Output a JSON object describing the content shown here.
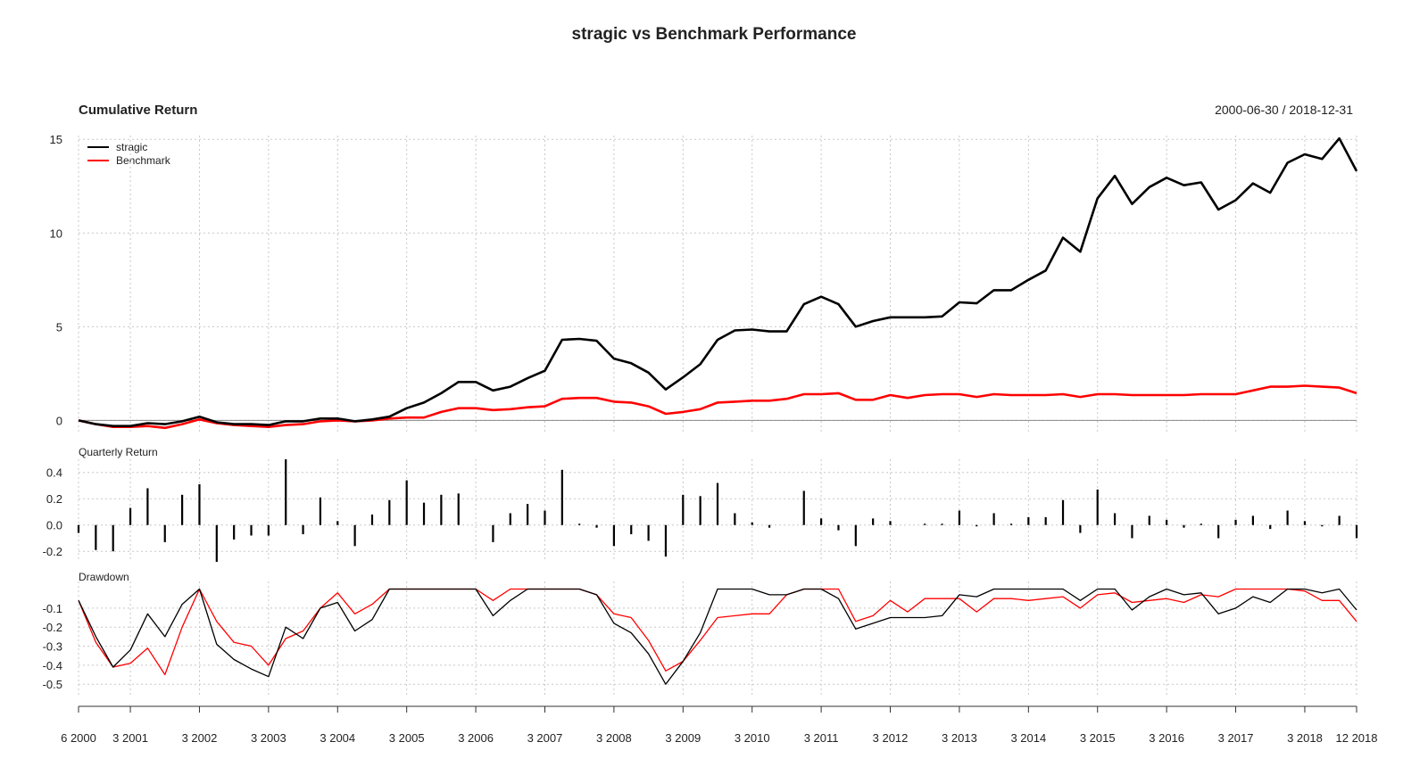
{
  "chart_data": {
    "title": "stragic vs Benchmark Performance",
    "date_range": "2000-06-30 / 2018-12-31",
    "x_tick_labels": [
      "6 2000",
      "3 2001",
      "3 2002",
      "3 2003",
      "3 2004",
      "3 2005",
      "3 2006",
      "3 2007",
      "3 2008",
      "3 2009",
      "3 2010",
      "3 2011",
      "3 2012",
      "3 2013",
      "3 2014",
      "3 2015",
      "3 2016",
      "3 2017",
      "3 2018",
      "12 2018"
    ],
    "series_colors": {
      "stragic": "#000000",
      "Benchmark": "#ff0000"
    },
    "legend": {
      "position": "top-left",
      "entries": [
        "stragic",
        "Benchmark"
      ]
    },
    "panels": [
      {
        "name": "Cumulative Return",
        "type": "line",
        "title": "Cumulative Return",
        "ylim": [
          -0.6,
          15.2
        ],
        "yticks": [
          0,
          5,
          10,
          15
        ],
        "ytick_labels": [
          "0",
          "5",
          "10",
          "15"
        ],
        "grid": true,
        "series": [
          {
            "name": "stragic",
            "values": [
              0,
              -0.2,
              -0.3,
              -0.3,
              -0.15,
              -0.2,
              -0.05,
              0.2,
              -0.1,
              -0.2,
              -0.2,
              -0.25,
              -0.05,
              -0.05,
              0.1,
              0.1,
              -0.05,
              0.05,
              0.2,
              0.65,
              0.95,
              1.45,
              2.05,
              2.05,
              1.6,
              1.8,
              2.25,
              2.65,
              4.3,
              4.35,
              4.25,
              3.3,
              3.05,
              2.55,
              1.65,
              2.3,
              3.0,
              4.3,
              4.8,
              4.85,
              4.75,
              4.75,
              6.2,
              6.6,
              6.2,
              5.0,
              5.3,
              5.5,
              5.5,
              5.5,
              5.55,
              6.3,
              6.25,
              6.95,
              6.95,
              7.5,
              8.0,
              9.75,
              9.0,
              11.85,
              13.05,
              11.55,
              12.45,
              12.95,
              12.55,
              12.7,
              11.25,
              11.75,
              12.65,
              12.15,
              13.75,
              14.2,
              13.95,
              15.05,
              13.3
            ]
          },
          {
            "name": "Benchmark",
            "values": [
              0,
              -0.2,
              -0.35,
              -0.35,
              -0.3,
              -0.4,
              -0.2,
              0.05,
              -0.15,
              -0.25,
              -0.3,
              -0.35,
              -0.25,
              -0.2,
              -0.05,
              0.0,
              -0.05,
              0.0,
              0.1,
              0.15,
              0.15,
              0.45,
              0.65,
              0.65,
              0.55,
              0.6,
              0.7,
              0.75,
              1.15,
              1.2,
              1.2,
              1.0,
              0.95,
              0.75,
              0.35,
              0.45,
              0.6,
              0.95,
              1.0,
              1.05,
              1.05,
              1.15,
              1.4,
              1.4,
              1.45,
              1.1,
              1.1,
              1.35,
              1.2,
              1.35,
              1.4,
              1.4,
              1.25,
              1.4,
              1.35,
              1.35,
              1.35,
              1.4,
              1.25,
              1.4,
              1.4,
              1.35,
              1.35,
              1.35,
              1.35,
              1.4,
              1.4,
              1.4,
              1.6,
              1.8,
              1.8,
              1.85,
              1.8,
              1.75,
              1.45
            ]
          }
        ]
      },
      {
        "name": "Quarterly Return",
        "type": "bar",
        "title": "Quarterly Return",
        "ylim": [
          -0.28,
          0.5
        ],
        "yticks": [
          -0.2,
          0.0,
          0.2,
          0.4
        ],
        "ytick_labels": [
          "-0.2",
          "0.0",
          "0.2",
          "0.4"
        ],
        "grid": true,
        "series": [
          {
            "name": "stragic",
            "values": [
              -0.06,
              -0.19,
              -0.2,
              0.13,
              0.28,
              -0.13,
              0.23,
              0.31,
              -0.28,
              -0.11,
              -0.08,
              -0.08,
              0.5,
              -0.07,
              0.21,
              0.03,
              -0.16,
              0.08,
              0.19,
              0.34,
              0.17,
              0.23,
              0.24,
              0.0,
              -0.13,
              0.09,
              0.16,
              0.11,
              0.42,
              0.01,
              -0.02,
              -0.16,
              -0.07,
              -0.12,
              -0.24,
              0.23,
              0.22,
              0.32,
              0.09,
              0.02,
              -0.02,
              0.0,
              0.26,
              0.05,
              -0.04,
              -0.16,
              0.05,
              0.03,
              0.0,
              0.01,
              0.01,
              0.11,
              -0.01,
              0.09,
              0.01,
              0.06,
              0.06,
              0.19,
              -0.06,
              0.27,
              0.09,
              -0.1,
              0.07,
              0.04,
              -0.02,
              0.01,
              -0.1,
              0.04,
              0.07,
              -0.03,
              0.11,
              0.03,
              -0.01,
              0.07,
              -0.1
            ]
          }
        ]
      },
      {
        "name": "Drawdown",
        "type": "line",
        "title": "Drawdown",
        "ylim": [
          -0.56,
          0.04
        ],
        "yticks": [
          -0.5,
          -0.4,
          -0.3,
          -0.2,
          -0.1
        ],
        "ytick_labels": [
          "-0.5",
          "-0.4",
          "-0.3",
          "-0.2",
          "-0.1"
        ],
        "grid": true,
        "series": [
          {
            "name": "stragic",
            "values": [
              -0.06,
              -0.25,
              -0.41,
              -0.32,
              -0.13,
              -0.25,
              -0.08,
              0.0,
              -0.29,
              -0.37,
              -0.42,
              -0.46,
              -0.2,
              -0.26,
              -0.1,
              -0.07,
              -0.22,
              -0.16,
              0.0,
              0.0,
              0.0,
              0.0,
              0.0,
              0.0,
              -0.14,
              -0.06,
              0.0,
              0.0,
              0.0,
              0.0,
              -0.03,
              -0.18,
              -0.23,
              -0.34,
              -0.5,
              -0.38,
              -0.23,
              0.0,
              0.0,
              0.0,
              -0.03,
              -0.03,
              0.0,
              0.0,
              -0.05,
              -0.21,
              -0.18,
              -0.15,
              -0.15,
              -0.15,
              -0.14,
              -0.03,
              -0.04,
              0.0,
              0.0,
              0.0,
              0.0,
              0.0,
              -0.06,
              0.0,
              0.0,
              -0.11,
              -0.04,
              0.0,
              -0.03,
              -0.02,
              -0.13,
              -0.1,
              -0.04,
              -0.07,
              0.0,
              0.0,
              -0.02,
              0.0,
              -0.11
            ]
          },
          {
            "name": "Benchmark",
            "values": [
              -0.06,
              -0.28,
              -0.41,
              -0.39,
              -0.31,
              -0.45,
              -0.2,
              0.0,
              -0.17,
              -0.28,
              -0.3,
              -0.4,
              -0.26,
              -0.22,
              -0.1,
              -0.02,
              -0.13,
              -0.08,
              0.0,
              0.0,
              0.0,
              0.0,
              0.0,
              0.0,
              -0.06,
              0.0,
              0.0,
              0.0,
              0.0,
              0.0,
              -0.03,
              -0.13,
              -0.15,
              -0.27,
              -0.43,
              -0.38,
              -0.27,
              -0.15,
              -0.14,
              -0.13,
              -0.13,
              -0.03,
              0.0,
              0.0,
              0.0,
              -0.17,
              -0.14,
              -0.06,
              -0.12,
              -0.05,
              -0.05,
              -0.05,
              -0.12,
              -0.05,
              -0.05,
              -0.06,
              -0.05,
              -0.04,
              -0.1,
              -0.03,
              -0.02,
              -0.07,
              -0.06,
              -0.05,
              -0.07,
              -0.03,
              -0.04,
              0.0,
              0.0,
              0.0,
              0.0,
              -0.01,
              -0.06,
              -0.06,
              -0.17
            ]
          }
        ]
      }
    ]
  }
}
